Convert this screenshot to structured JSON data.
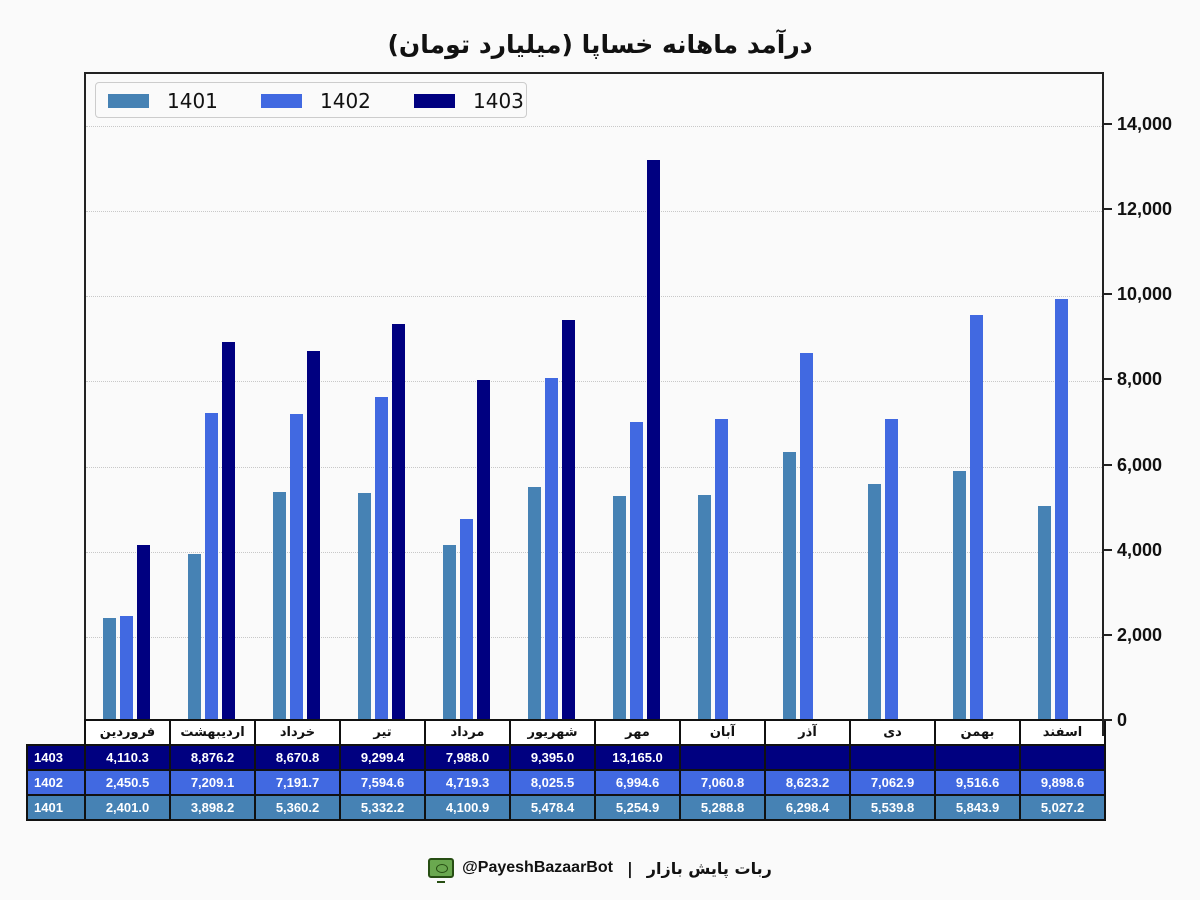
{
  "chart_data": {
    "type": "bar",
    "title": "درآمد ماهانه خساپا (میلیارد تومان)",
    "xlabel": "",
    "ylabel": "",
    "ylim": [
      0,
      15200
    ],
    "yticks": [
      0,
      2000,
      4000,
      6000,
      8000,
      10000,
      12000,
      14000
    ],
    "ytick_labels": [
      "0",
      "2,000",
      "4,000",
      "6,000",
      "8,000",
      "10,000",
      "12,000",
      "14,000"
    ],
    "y_axis_position": "right",
    "grid": "horizontal dotted",
    "legend_position": "upper left",
    "categories": [
      "فروردین",
      "اردیبهشت",
      "خرداد",
      "تیر",
      "مرداد",
      "شهریور",
      "مهر",
      "آبان",
      "آذر",
      "دی",
      "بهمن",
      "اسفند"
    ],
    "series": [
      {
        "name": "1401",
        "color": "#4682b4",
        "values": [
          2401.0,
          3898.2,
          5360.2,
          5332.2,
          4100.9,
          5478.4,
          5254.9,
          5288.8,
          6298.4,
          5539.8,
          5843.9,
          5027.2
        ]
      },
      {
        "name": "1402",
        "color": "#4169e1",
        "values": [
          2450.5,
          7209.1,
          7191.7,
          7594.6,
          4719.3,
          8025.5,
          6994.6,
          7060.8,
          8623.2,
          7062.9,
          9516.6,
          9898.6
        ]
      },
      {
        "name": "1403",
        "color": "#000080",
        "values": [
          4110.3,
          8876.2,
          8670.8,
          9299.4,
          7988.0,
          9395.0,
          13165.0,
          null,
          null,
          null,
          null,
          null
        ]
      }
    ]
  },
  "table": {
    "months": [
      "فروردین",
      "اردیبهشت",
      "خرداد",
      "تیر",
      "مرداد",
      "شهریور",
      "مهر",
      "آبان",
      "آذر",
      "دی",
      "بهمن",
      "اسفند"
    ],
    "rows": [
      {
        "label": "1403",
        "color": "#000080",
        "cells": [
          "4,110.3",
          "8,876.2",
          "8,670.8",
          "9,299.4",
          "7,988.0",
          "9,395.0",
          "13,165.0",
          "",
          "",
          "",
          "",
          ""
        ]
      },
      {
        "label": "1402",
        "color": "#4169e1",
        "cells": [
          "2,450.5",
          "7,209.1",
          "7,191.7",
          "7,594.6",
          "4,719.3",
          "8,025.5",
          "6,994.6",
          "7,060.8",
          "8,623.2",
          "7,062.9",
          "9,516.6",
          "9,898.6"
        ]
      },
      {
        "label": "1401",
        "color": "#4682b4",
        "cells": [
          "2,401.0",
          "3,898.2",
          "5,360.2",
          "5,332.2",
          "4,100.9",
          "5,478.4",
          "5,254.9",
          "5,288.8",
          "6,298.4",
          "5,539.8",
          "5,843.9",
          "5,027.2"
        ]
      }
    ]
  },
  "footer": {
    "brand_text": "ربات پایش بازار",
    "separator": "|",
    "handle": "@PayeshBazaarBot",
    "icon": "bot-monitor-icon"
  }
}
